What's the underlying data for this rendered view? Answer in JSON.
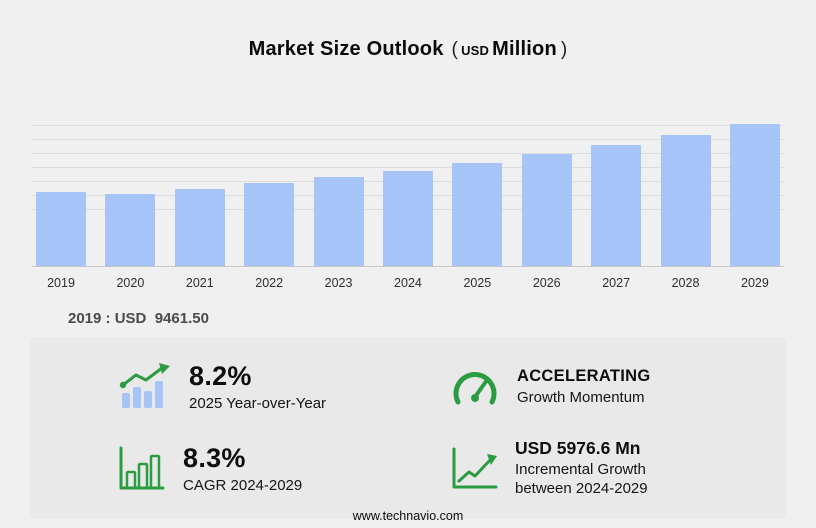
{
  "title": {
    "main": "Market Size Outlook",
    "paren_open": "(",
    "unit_small": "USD",
    "unit_large": "Million",
    "paren_close": ")"
  },
  "chart_data": {
    "type": "bar",
    "title": "Market Size Outlook (USD Million)",
    "xlabel": "",
    "ylabel": "",
    "categories": [
      "2019",
      "2020",
      "2021",
      "2022",
      "2023",
      "2024",
      "2025",
      "2026",
      "2027",
      "2028",
      "2029"
    ],
    "values": [
      9461.5,
      9200,
      9850,
      10700,
      11450,
      12211,
      13212,
      14310,
      15500,
      16790,
      18188
    ],
    "ylim": [
      0,
      18200
    ],
    "grid": true,
    "legend": "none",
    "annotation": "2019 : USD 9461.50"
  },
  "annotation": "2019 : USD  9461.50",
  "stats": [
    {
      "icon": "yoy-growth-icon",
      "value": "8.2%",
      "label": "2025 Year-over-Year"
    },
    {
      "icon": "speedometer-icon",
      "value": "ACCELERATING",
      "label": "Growth Momentum"
    },
    {
      "icon": "cagr-bars-icon",
      "value": "8.3%",
      "label": "CAGR 2024-2029"
    },
    {
      "icon": "incremental-growth-icon",
      "value": "USD 5976.6 Mn",
      "label": "Incremental Growth between 2024-2029"
    }
  ],
  "footer": {
    "url": "www.technavio.com"
  },
  "colors": {
    "bar": "#a6c4f7",
    "green": "#2b9c41",
    "panel": "#e9e9e9",
    "background": "#f0f0f0"
  }
}
